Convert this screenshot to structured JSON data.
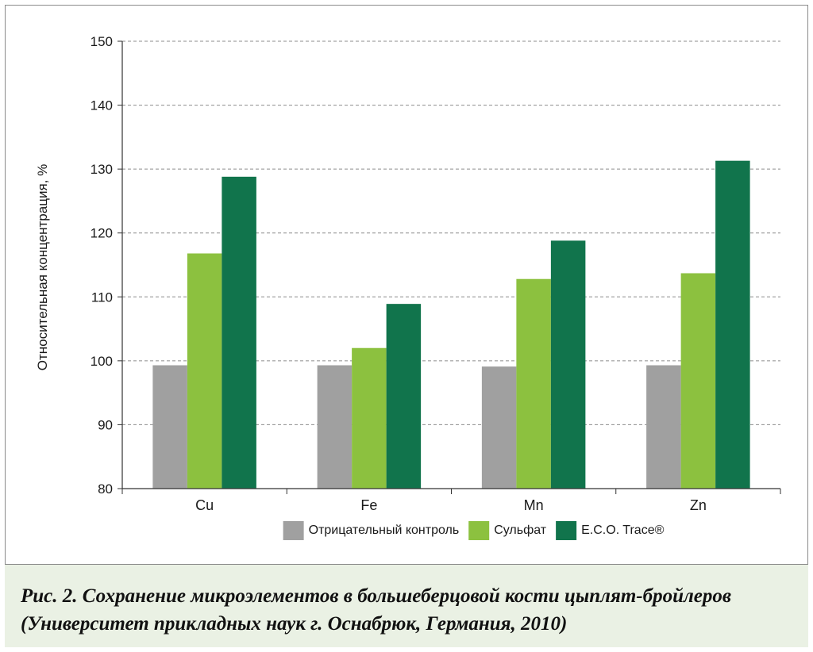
{
  "chart_data": {
    "type": "bar",
    "title": "",
    "xlabel": "",
    "ylabel": "Относительная концентрация, %",
    "ylim": [
      80,
      150
    ],
    "yticks": [
      80,
      90,
      100,
      110,
      120,
      130,
      140,
      150
    ],
    "grid": true,
    "legend_position": "bottom",
    "categories": [
      "Cu",
      "Fe",
      "Mn",
      "Zn"
    ],
    "series": [
      {
        "name": "Отрицательный контроль",
        "color": "#a0a0a0",
        "values": [
          99.3,
          99.3,
          99.1,
          99.3
        ]
      },
      {
        "name": "Сульфат",
        "color": "#8cc13f",
        "values": [
          116.8,
          102.0,
          112.8,
          113.7
        ]
      },
      {
        "name": "E.C.O. Trace®",
        "color": "#11744c",
        "values": [
          128.8,
          108.9,
          118.8,
          131.3
        ]
      }
    ]
  },
  "caption": {
    "line1": "Рис. 2. Сохранение микроэлементов в большеберцовой кости цыплят-бройлеров",
    "line2": "(Университет прикладных наук г. Оснабрюк, Германия, 2010)"
  }
}
